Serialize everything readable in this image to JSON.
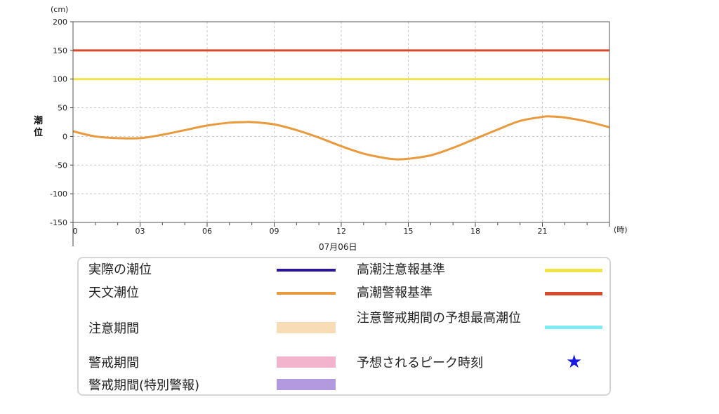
{
  "chart_data": {
    "type": "line",
    "y_unit": "(cm)",
    "ylabel": "潮\n位",
    "x_unit": "(時)",
    "date_label": "07月06日",
    "ylim": [
      -150,
      200
    ],
    "xlim": [
      0,
      24
    ],
    "y_ticks": [
      200,
      150,
      100,
      50,
      0,
      -50,
      -100,
      -150
    ],
    "x_tick_labels": [
      {
        "x": 0,
        "label": "0"
      },
      {
        "x": 3,
        "label": "03"
      },
      {
        "x": 6,
        "label": "06"
      },
      {
        "x": 9,
        "label": "09"
      },
      {
        "x": 12,
        "label": "12"
      },
      {
        "x": 15,
        "label": "15"
      },
      {
        "x": 18,
        "label": "18"
      },
      {
        "x": 21,
        "label": "21"
      }
    ],
    "grid": true,
    "reference_lines": [
      {
        "name": "高潮警報基準",
        "y": 150,
        "color": "#d64a2b"
      },
      {
        "name": "高潮注意報基準",
        "y": 100,
        "color": "#f2e34a"
      }
    ],
    "series": [
      {
        "name": "天文潮位",
        "color": "#e89a3c",
        "x": [
          0,
          1,
          2,
          3,
          4,
          5,
          6,
          7,
          7.7,
          8,
          9,
          10,
          11,
          12,
          13,
          14,
          14.5,
          15,
          16,
          17,
          18,
          19,
          20,
          21,
          21.3,
          22,
          23,
          24
        ],
        "y": [
          9,
          0,
          -3,
          -3,
          3,
          11,
          19,
          24,
          25,
          25,
          21,
          11,
          -2,
          -17,
          -30,
          -38,
          -40,
          -39,
          -33,
          -20,
          -4,
          12,
          27,
          34,
          35,
          33,
          26,
          16
        ]
      }
    ]
  },
  "legend": {
    "items": [
      {
        "label": "実際の潮位",
        "type": "line",
        "color": "#2a14a0"
      },
      {
        "label": "天文潮位",
        "type": "line",
        "color": "#e89a3c"
      },
      {
        "label": "注意期間",
        "type": "block",
        "color": "#f7dcb5"
      },
      {
        "label": "警戒期間",
        "type": "block",
        "color": "#f1b4cc"
      },
      {
        "label": "警戒期間(特別警報)",
        "type": "block",
        "color": "#b39ade"
      },
      {
        "label": "高潮注意報基準",
        "type": "line",
        "color": "#f2e34a"
      },
      {
        "label": "高潮警報基準",
        "type": "line",
        "color": "#d64a2b"
      },
      {
        "label": "注意警戒期間の予想最高潮位",
        "type": "line",
        "color": "#7eeaf2"
      },
      {
        "label": "予想されるピーク時刻",
        "type": "star",
        "color": "#1a1ae6",
        "glyph": "★"
      }
    ]
  }
}
